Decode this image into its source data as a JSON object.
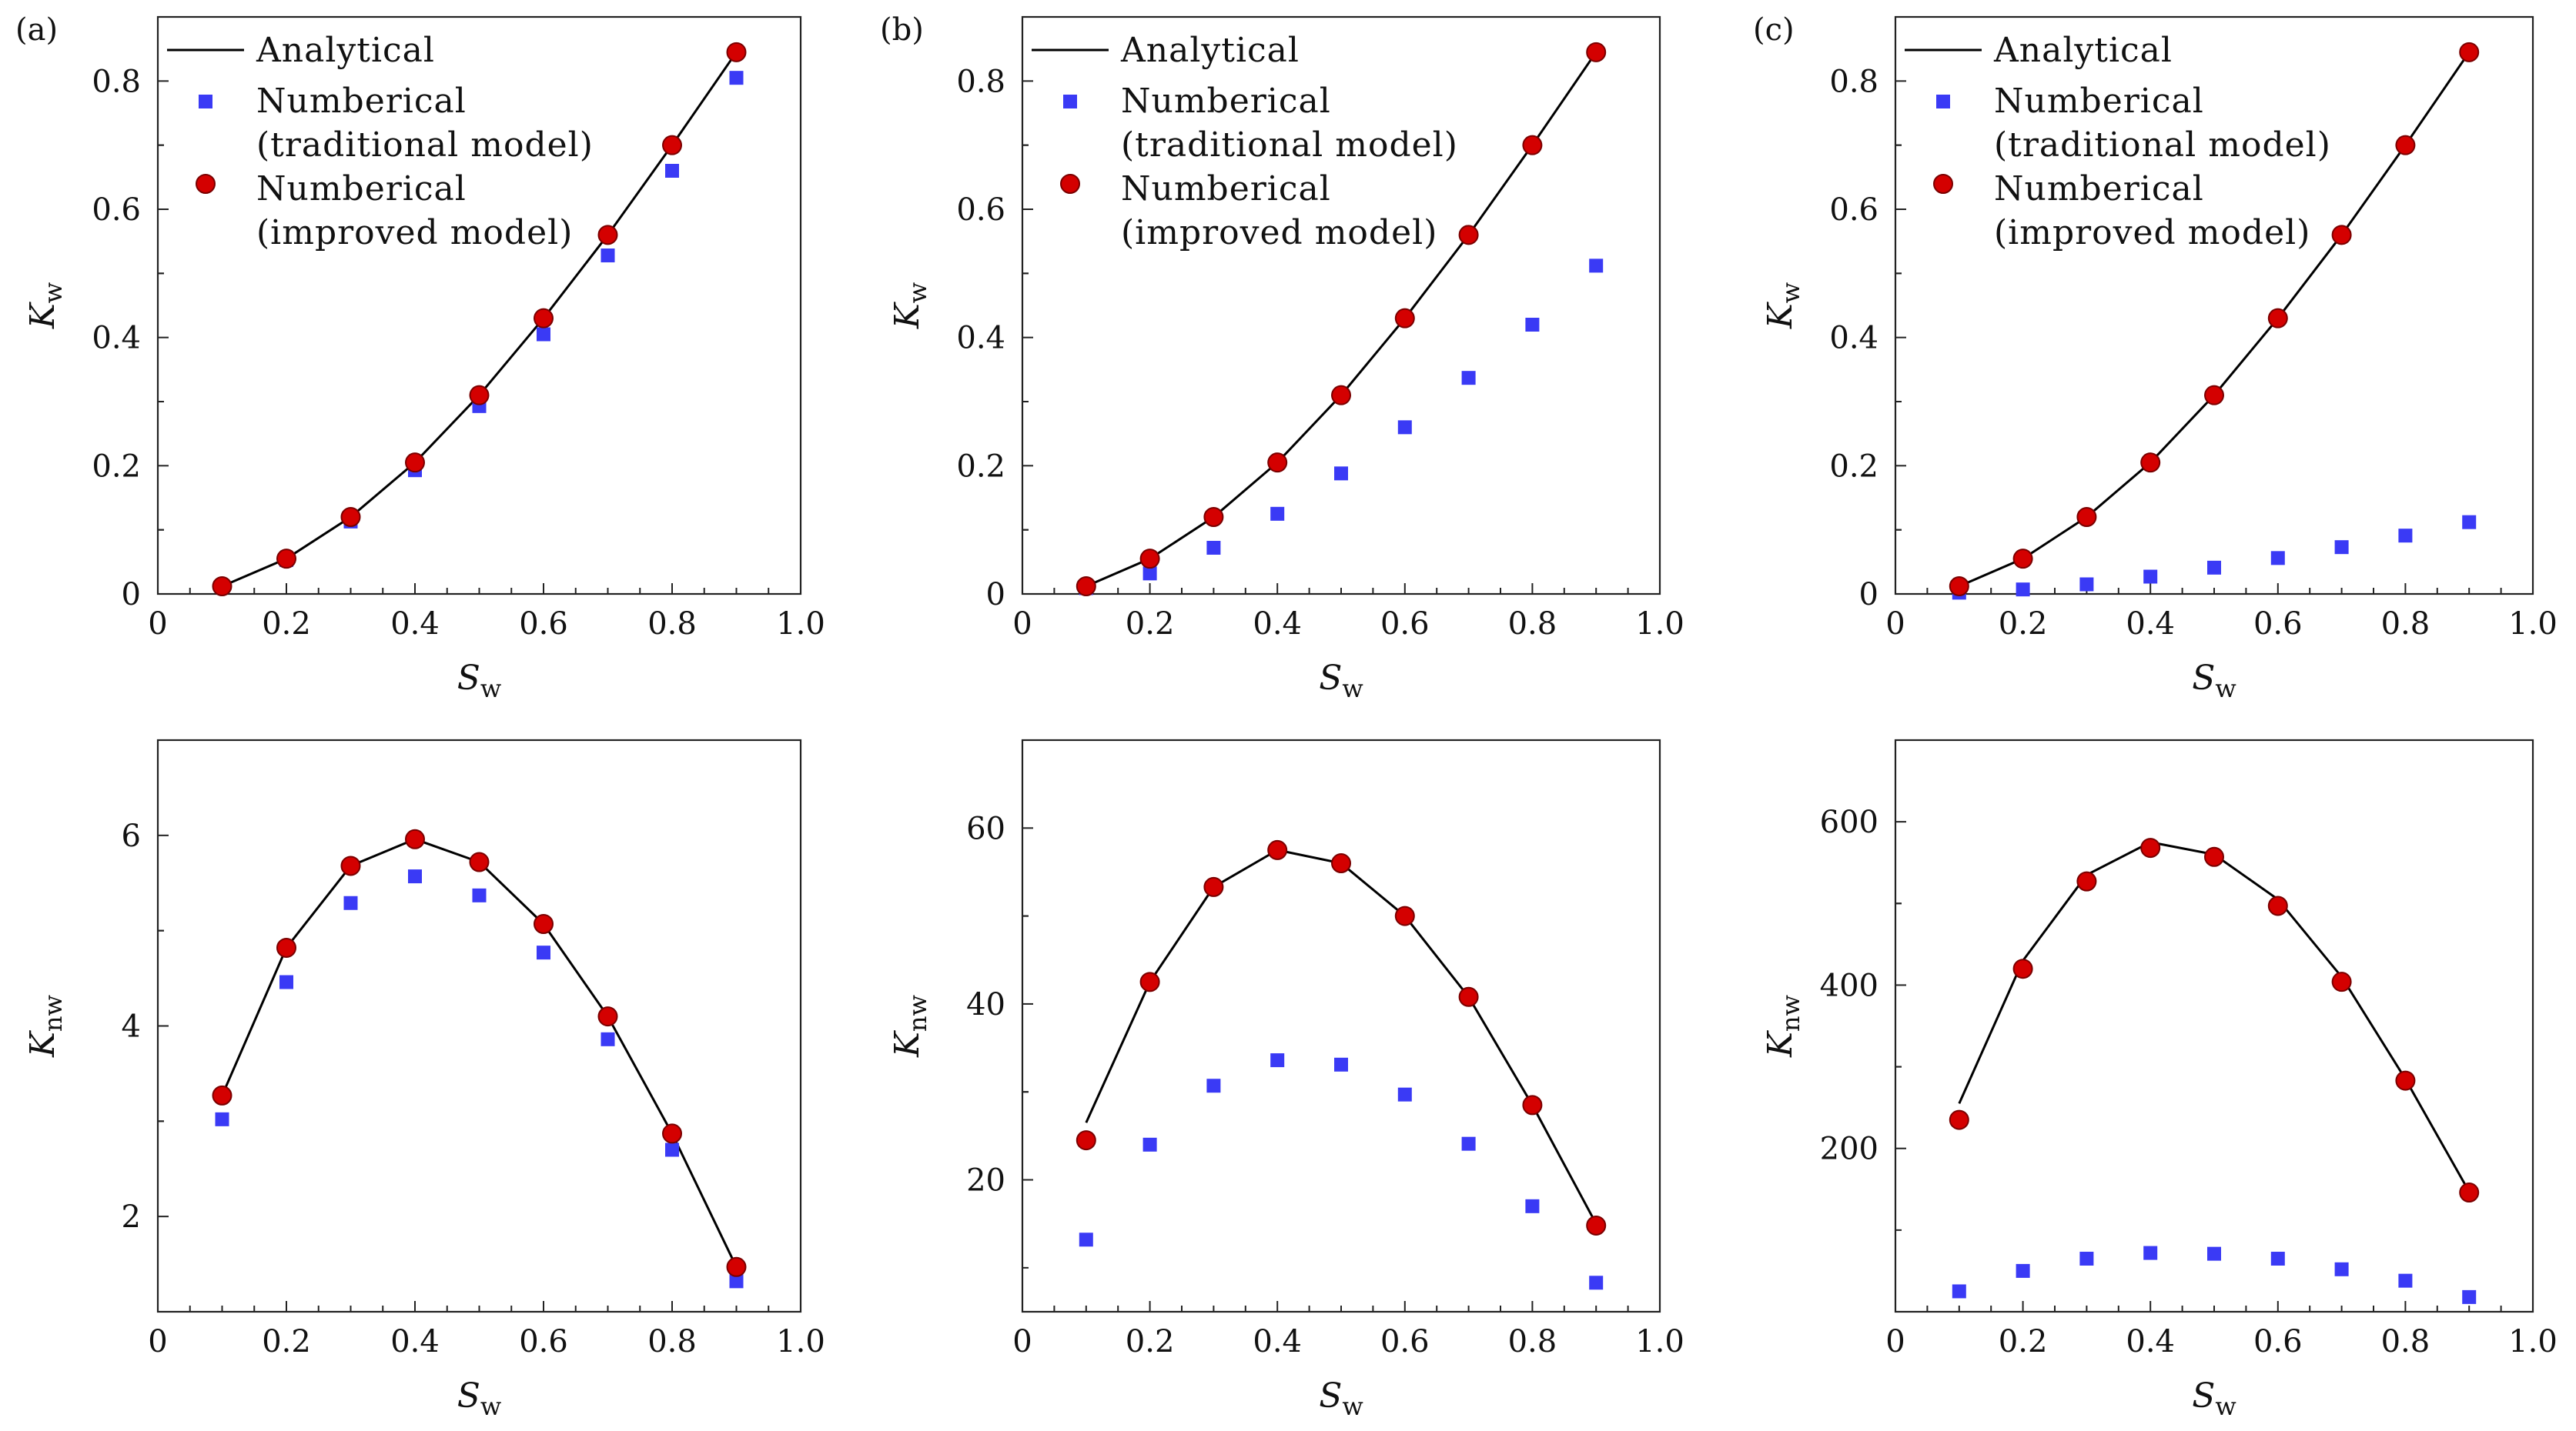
{
  "colors": {
    "analytical": "#000000",
    "traditional": "#3a3af5",
    "improved": "#d40000",
    "improved_edge": "#7a0000"
  },
  "legend": {
    "analytical": "Analytical",
    "traditional_line1": "Numberical",
    "traditional_line2": "(traditional model)",
    "improved_line1": "Numberical",
    "improved_line2": "(improved model)"
  },
  "chart_data": [
    {
      "panel": "(a)",
      "type": "line+scatter",
      "xlabel": "S",
      "xlabel_sub": "w",
      "ylabel": "K",
      "ylabel_sub": "w",
      "xlim": [
        0,
        1.0
      ],
      "ylim": [
        0,
        0.9
      ],
      "xticks": [
        "0",
        "0.2",
        "0.4",
        "0.6",
        "0.8",
        "1.0"
      ],
      "yticks": [
        {
          "v": 0,
          "t": "0"
        },
        {
          "v": 0.2,
          "t": "0.2"
        },
        {
          "v": 0.4,
          "t": "0.4"
        },
        {
          "v": 0.6,
          "t": "0.6"
        },
        {
          "v": 0.8,
          "t": "0.8"
        }
      ],
      "x": [
        0.1,
        0.2,
        0.3,
        0.4,
        0.5,
        0.6,
        0.7,
        0.8,
        0.9
      ],
      "series": [
        {
          "name": "Analytical",
          "kind": "line",
          "values": [
            0.012,
            0.055,
            0.12,
            0.205,
            0.31,
            0.43,
            0.56,
            0.7,
            0.845
          ]
        },
        {
          "name": "Numberical (traditional model)",
          "kind": "square",
          "values": [
            0.011,
            0.053,
            0.113,
            0.193,
            0.293,
            0.405,
            0.528,
            0.66,
            0.805
          ]
        },
        {
          "name": "Numberical (improved model)",
          "kind": "circle",
          "values": [
            0.012,
            0.055,
            0.12,
            0.205,
            0.31,
            0.43,
            0.56,
            0.7,
            0.845
          ]
        }
      ],
      "legend": "top-left"
    },
    {
      "panel": "(b)",
      "type": "line+scatter",
      "xlabel": "S",
      "xlabel_sub": "w",
      "ylabel": "K",
      "ylabel_sub": "w",
      "xlim": [
        0,
        1.0
      ],
      "ylim": [
        0,
        0.9
      ],
      "xticks": [
        "0",
        "0.2",
        "0.4",
        "0.6",
        "0.8",
        "1.0"
      ],
      "yticks": [
        {
          "v": 0,
          "t": "0"
        },
        {
          "v": 0.2,
          "t": "0.2"
        },
        {
          "v": 0.4,
          "t": "0.4"
        },
        {
          "v": 0.6,
          "t": "0.6"
        },
        {
          "v": 0.8,
          "t": "0.8"
        }
      ],
      "x": [
        0.1,
        0.2,
        0.3,
        0.4,
        0.5,
        0.6,
        0.7,
        0.8,
        0.9
      ],
      "series": [
        {
          "name": "Analytical",
          "kind": "line",
          "values": [
            0.012,
            0.055,
            0.12,
            0.205,
            0.31,
            0.43,
            0.56,
            0.7,
            0.845
          ]
        },
        {
          "name": "Numberical (traditional model)",
          "kind": "square",
          "values": [
            0.009,
            0.032,
            0.072,
            0.125,
            0.188,
            0.26,
            0.337,
            0.42,
            0.512
          ]
        },
        {
          "name": "Numberical (improved model)",
          "kind": "circle",
          "values": [
            0.012,
            0.055,
            0.12,
            0.205,
            0.31,
            0.43,
            0.56,
            0.7,
            0.845
          ]
        }
      ],
      "legend": "top-left"
    },
    {
      "panel": "(c)",
      "type": "line+scatter",
      "xlabel": "S",
      "xlabel_sub": "w",
      "ylabel": "K",
      "ylabel_sub": "w",
      "xlim": [
        0,
        1.0
      ],
      "ylim": [
        0,
        0.9
      ],
      "xticks": [
        "0",
        "0.2",
        "0.4",
        "0.6",
        "0.8",
        "1.0"
      ],
      "yticks": [
        {
          "v": 0,
          "t": "0"
        },
        {
          "v": 0.2,
          "t": "0.2"
        },
        {
          "v": 0.4,
          "t": "0.4"
        },
        {
          "v": 0.6,
          "t": "0.6"
        },
        {
          "v": 0.8,
          "t": "0.8"
        }
      ],
      "x": [
        0.1,
        0.2,
        0.3,
        0.4,
        0.5,
        0.6,
        0.7,
        0.8,
        0.9
      ],
      "series": [
        {
          "name": "Analytical",
          "kind": "line",
          "values": [
            0.012,
            0.055,
            0.12,
            0.205,
            0.31,
            0.43,
            0.56,
            0.7,
            0.845
          ]
        },
        {
          "name": "Numberical (traditional model)",
          "kind": "square",
          "values": [
            0.002,
            0.007,
            0.015,
            0.027,
            0.041,
            0.056,
            0.073,
            0.091,
            0.112
          ]
        },
        {
          "name": "Numberical (improved model)",
          "kind": "circle",
          "values": [
            0.012,
            0.055,
            0.12,
            0.205,
            0.31,
            0.43,
            0.56,
            0.7,
            0.845
          ]
        }
      ],
      "legend": "top-left"
    },
    {
      "panel": "",
      "type": "line+scatter",
      "xlabel": "S",
      "xlabel_sub": "w",
      "ylabel": "K",
      "ylabel_sub": "nw",
      "xlim": [
        0,
        1.0
      ],
      "ylim": [
        1.0,
        7.0
      ],
      "xticks": [
        "0",
        "0.2",
        "0.4",
        "0.6",
        "0.8",
        "1.0"
      ],
      "yticks": [
        {
          "v": 2,
          "t": "2"
        },
        {
          "v": 4,
          "t": "4"
        },
        {
          "v": 6,
          "t": "6"
        }
      ],
      "x": [
        0.1,
        0.2,
        0.3,
        0.4,
        0.5,
        0.6,
        0.7,
        0.8,
        0.9
      ],
      "series": [
        {
          "name": "Analytical",
          "kind": "line",
          "values": [
            3.27,
            4.82,
            5.68,
            5.96,
            5.72,
            5.07,
            4.1,
            2.87,
            1.47
          ]
        },
        {
          "name": "Numberical (traditional model)",
          "kind": "square",
          "values": [
            3.02,
            4.46,
            5.29,
            5.57,
            5.37,
            4.77,
            3.86,
            2.7,
            1.32
          ]
        },
        {
          "name": "Numberical (improved model)",
          "kind": "circle",
          "values": [
            3.27,
            4.82,
            5.68,
            5.96,
            5.72,
            5.07,
            4.1,
            2.87,
            1.47
          ]
        }
      ]
    },
    {
      "panel": "",
      "type": "line+scatter",
      "xlabel": "S",
      "xlabel_sub": "w",
      "ylabel": "K",
      "ylabel_sub": "nw",
      "xlim": [
        0,
        1.0
      ],
      "ylim": [
        5,
        70
      ],
      "xticks": [
        "0",
        "0.2",
        "0.4",
        "0.6",
        "0.8",
        "1.0"
      ],
      "yticks": [
        {
          "v": 20,
          "t": "20"
        },
        {
          "v": 40,
          "t": "40"
        },
        {
          "v": 60,
          "t": "60"
        }
      ],
      "x": [
        0.1,
        0.2,
        0.3,
        0.4,
        0.5,
        0.6,
        0.7,
        0.8,
        0.9
      ],
      "series": [
        {
          "name": "Analytical",
          "kind": "line",
          "values": [
            26.5,
            42.5,
            53.3,
            57.5,
            56.0,
            50.0,
            40.8,
            28.5,
            15.0
          ]
        },
        {
          "name": "Numberical (traditional model)",
          "kind": "square",
          "values": [
            13.2,
            24.0,
            30.7,
            33.6,
            33.1,
            29.7,
            24.1,
            17.0,
            8.3
          ]
        },
        {
          "name": "Numberical (improved model)",
          "kind": "circle",
          "values": [
            24.5,
            42.5,
            53.3,
            57.5,
            56.0,
            50.0,
            40.8,
            28.5,
            14.8
          ]
        }
      ]
    },
    {
      "panel": "",
      "type": "line+scatter",
      "xlabel": "S",
      "xlabel_sub": "w",
      "ylabel": "K",
      "ylabel_sub": "nw",
      "xlim": [
        0,
        1.0
      ],
      "ylim": [
        0,
        700
      ],
      "xticks": [
        "0",
        "0.2",
        "0.4",
        "0.6",
        "0.8",
        "1.0"
      ],
      "yticks": [
        {
          "v": 200,
          "t": "200"
        },
        {
          "v": 400,
          "t": "400"
        },
        {
          "v": 600,
          "t": "600"
        }
      ],
      "x": [
        0.1,
        0.2,
        0.3,
        0.4,
        0.5,
        0.6,
        0.7,
        0.8,
        0.9
      ],
      "series": [
        {
          "name": "Analytical",
          "kind": "line",
          "values": [
            255,
            430,
            535,
            575,
            560,
            505,
            410,
            285,
            147
          ]
        },
        {
          "name": "Numberical (traditional model)",
          "kind": "square",
          "values": [
            25,
            50,
            65,
            72,
            71,
            65,
            52,
            38,
            18
          ]
        },
        {
          "name": "Numberical (improved model)",
          "kind": "circle",
          "values": [
            235,
            420,
            527,
            568,
            557,
            497,
            404,
            283,
            146
          ]
        }
      ]
    }
  ]
}
